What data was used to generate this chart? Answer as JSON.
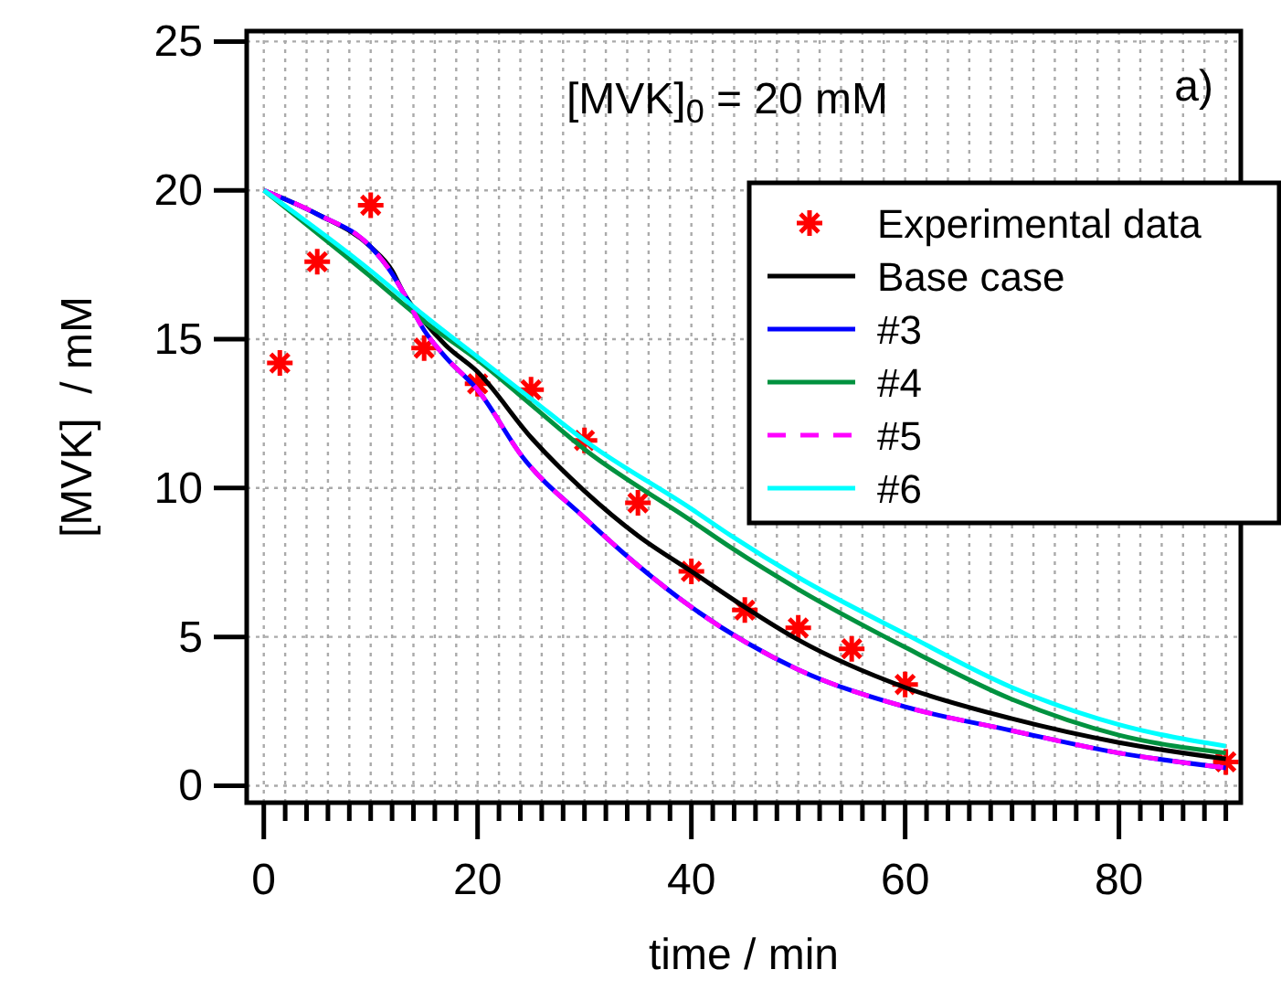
{
  "chart_data": {
    "type": "line",
    "xlabel": "time / min",
    "ylabel": "[MVK]  / mM",
    "annotations": [
      "[MVK]$_{0}$ = 20 mM",
      "a)"
    ],
    "xlim": [
      -1.6,
      91.4
    ],
    "ylim": [
      -0.57,
      25.35
    ],
    "xticks": [
      0,
      {
        "value": 2,
        "label": null
      },
      {
        "value": 4,
        "label": null
      },
      {
        "value": 6,
        "label": null
      },
      {
        "value": 8,
        "label": null
      },
      {
        "value": 10,
        "label": null
      },
      {
        "value": 12,
        "label": null
      },
      {
        "value": 14,
        "label": null
      },
      {
        "value": 16,
        "label": null
      },
      {
        "value": 18,
        "label": null
      },
      20,
      {
        "value": 22,
        "label": null
      },
      {
        "value": 24,
        "label": null
      },
      {
        "value": 26,
        "label": null
      },
      {
        "value": 28,
        "label": null
      },
      {
        "value": 30,
        "label": null
      },
      {
        "value": 32,
        "label": null
      },
      {
        "value": 34,
        "label": null
      },
      {
        "value": 36,
        "label": null
      },
      {
        "value": 38,
        "label": null
      },
      40,
      {
        "value": 42,
        "label": null
      },
      {
        "value": 44,
        "label": null
      },
      {
        "value": 46,
        "label": null
      },
      {
        "value": 48,
        "label": null
      },
      {
        "value": 50,
        "label": null
      },
      {
        "value": 52,
        "label": null
      },
      {
        "value": 54,
        "label": null
      },
      {
        "value": 56,
        "label": null
      },
      {
        "value": 58,
        "label": null
      },
      60,
      {
        "value": 62,
        "label": null
      },
      {
        "value": 64,
        "label": null
      },
      {
        "value": 66,
        "label": null
      },
      {
        "value": 68,
        "label": null
      },
      {
        "value": 70,
        "label": null
      },
      {
        "value": 72,
        "label": null
      },
      {
        "value": 74,
        "label": null
      },
      {
        "value": 76,
        "label": null
      },
      {
        "value": 78,
        "label": null
      },
      80,
      {
        "value": 82,
        "label": null
      },
      {
        "value": 84,
        "label": null
      },
      {
        "value": 86,
        "label": null
      },
      {
        "value": 88,
        "label": null
      },
      {
        "value": 90,
        "label": null
      }
    ],
    "yticks": [
      0,
      5,
      10,
      15,
      20,
      25
    ],
    "grid": true,
    "legend": "top right",
    "series": [
      {
        "name": "Experimental data",
        "type": "scatter",
        "marker": "cross",
        "color": "#ff0000",
        "x": [
          1.5,
          5,
          10,
          15,
          20,
          25,
          30,
          35,
          40,
          45,
          50,
          55,
          60,
          90
        ],
        "values": [
          14.2,
          17.6,
          19.5,
          14.7,
          13.5,
          13.3,
          11.6,
          9.5,
          7.2,
          5.9,
          5.3,
          4.6,
          3.4,
          0.8
        ]
      },
      {
        "name": "Base case",
        "color": "#000000",
        "x": [
          0,
          5,
          10,
          12,
          13,
          15,
          17,
          20,
          25,
          30,
          35,
          40,
          45,
          50,
          60,
          70,
          80,
          90
        ],
        "values": [
          20,
          19.2,
          18.1,
          17.3,
          16.6,
          15.6,
          14.8,
          13.9,
          11.7,
          9.9,
          8.4,
          7.2,
          6.0,
          4.9,
          3.3,
          2.25,
          1.45,
          0.9
        ]
      },
      {
        "name": "#3",
        "color": "#0000ff",
        "x": [
          0,
          5,
          10,
          12,
          13,
          15,
          17,
          20,
          24.3,
          30,
          35,
          40,
          50,
          60,
          70,
          80,
          90
        ],
        "values": [
          20,
          19.2,
          18.1,
          17.2,
          16.6,
          15.3,
          14.4,
          13.3,
          11.0,
          9.0,
          7.4,
          6.0,
          3.9,
          2.65,
          1.85,
          1.1,
          0.6
        ]
      },
      {
        "name": "#4",
        "color": "#00923f",
        "x": [
          0,
          10,
          15,
          20,
          25,
          30,
          40,
          43.7,
          50,
          60,
          70,
          80,
          90
        ],
        "values": [
          20,
          17.1,
          15.6,
          14.3,
          12.8,
          11.3,
          8.9,
          8.0,
          6.6,
          4.65,
          2.9,
          1.7,
          1.1
        ]
      },
      {
        "name": "#5",
        "color": "#ff00ff",
        "line_style": "dashed",
        "x": [
          0,
          5,
          10,
          12,
          13,
          15,
          17,
          20,
          24.3,
          30,
          35,
          40,
          50,
          60,
          70,
          80,
          90
        ],
        "values": [
          20,
          19.2,
          18.1,
          17.2,
          16.6,
          15.3,
          14.4,
          13.3,
          11.0,
          9.0,
          7.4,
          6.0,
          3.9,
          2.65,
          1.85,
          1.1,
          0.6
        ]
      },
      {
        "name": "#6",
        "color": "#00ffff",
        "x": [
          0,
          10,
          15,
          20,
          25,
          30,
          40,
          43.7,
          50,
          60,
          70,
          80,
          90
        ],
        "values": [
          20,
          17.3,
          15.8,
          14.4,
          13.0,
          11.6,
          9.3,
          8.4,
          7.0,
          5.1,
          3.3,
          2.05,
          1.33
        ]
      }
    ]
  }
}
